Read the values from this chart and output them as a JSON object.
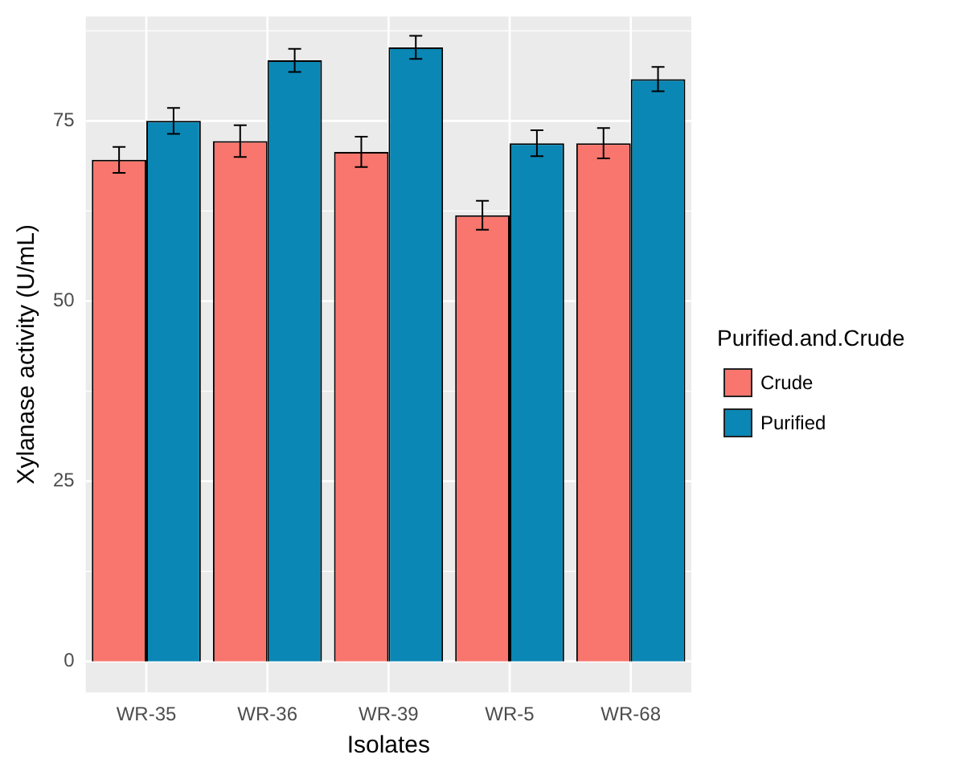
{
  "chart_data": {
    "type": "bar",
    "xlabel": "Isolates",
    "ylabel": "Xylanase activity (U/mL)",
    "legend_title": "Purified.and.Crude",
    "categories": [
      "WR-35",
      "WR-36",
      "WR-39",
      "WR-5",
      "WR-68"
    ],
    "series": [
      {
        "name": "Crude",
        "color": "#f8766d",
        "values": [
          69.6,
          72.2,
          70.7,
          61.9,
          71.9
        ],
        "errors": [
          1.8,
          2.2,
          2.1,
          2.0,
          2.1
        ]
      },
      {
        "name": "Purified",
        "color": "#0a87b5",
        "values": [
          75.0,
          83.4,
          85.2,
          71.9,
          80.8
        ],
        "errors": [
          1.8,
          1.6,
          1.6,
          1.8,
          1.7
        ]
      }
    ],
    "ylim": [
      -4.3,
      89.5
    ],
    "yticks": [
      0,
      25,
      50,
      75
    ],
    "grid": true,
    "legend": "right"
  }
}
